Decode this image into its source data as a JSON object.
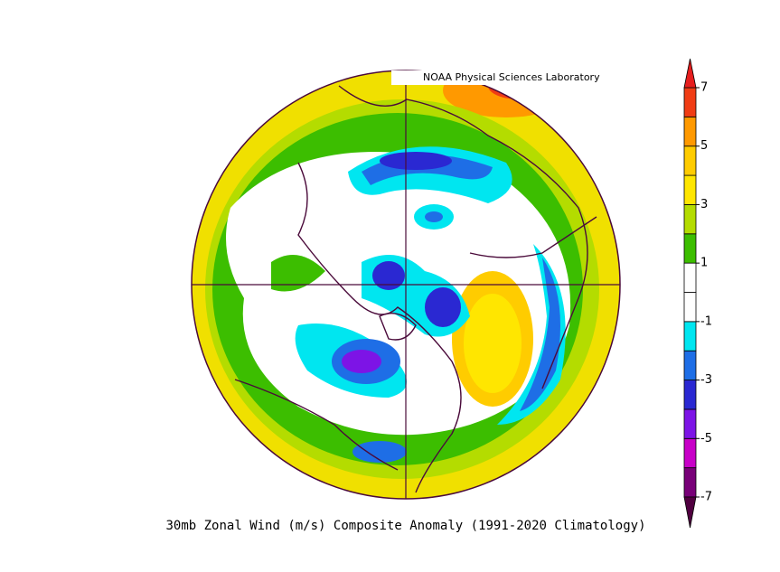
{
  "header": {
    "title": "NOAA Physical Sciences Laboratory"
  },
  "caption": "30mb Zonal Wind (m/s) Composite Anomaly (1991-2020 Climatology)",
  "colorbar": {
    "lim": [
      -7,
      7
    ],
    "ticks": [
      7,
      5,
      3,
      1,
      -1,
      -3,
      -5,
      -7
    ],
    "colors": [
      "#780078",
      "#c800c8",
      "#7d14e6",
      "#2a28d2",
      "#1e6ee6",
      "#00e6f0",
      "#ffffff",
      "#ffffff",
      "#3cbe00",
      "#b4dc00",
      "#ffe600",
      "#ffcc00",
      "#ff9900",
      "#f03c14"
    ],
    "under_color": "#500040",
    "over_color": "#e61e1e"
  }
}
